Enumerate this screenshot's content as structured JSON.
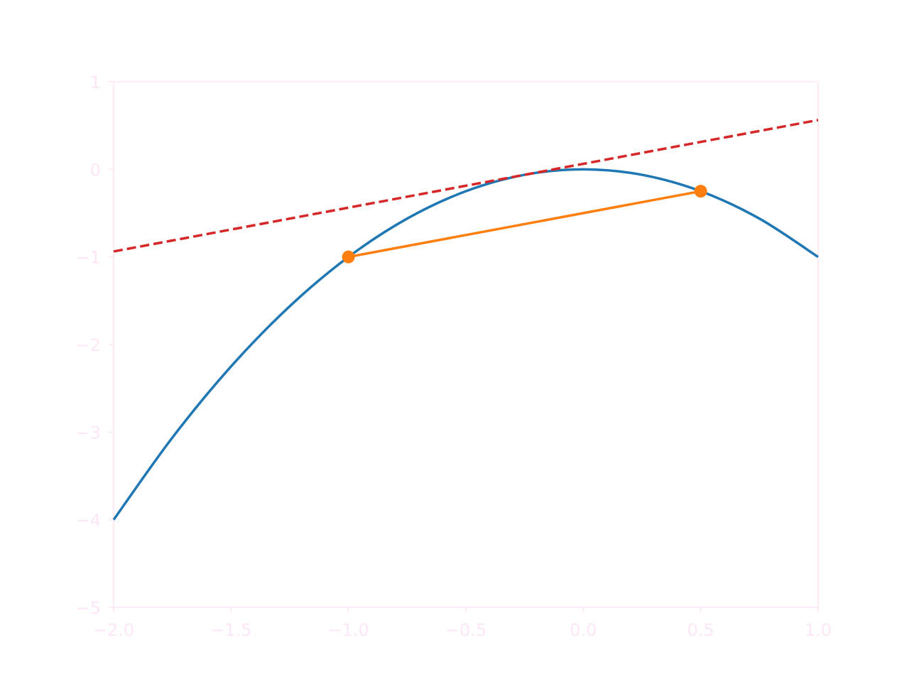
{
  "chart_data": {
    "type": "line",
    "title": "",
    "xlabel": "",
    "ylabel": "",
    "xlim": [
      -2.0,
      1.0
    ],
    "ylim": [
      -5,
      1
    ],
    "x_ticks": [
      {
        "value": -2.0,
        "label": "−2.0"
      },
      {
        "value": -1.5,
        "label": "−1.5"
      },
      {
        "value": -1.0,
        "label": "−1.0"
      },
      {
        "value": -0.5,
        "label": "−0.5"
      },
      {
        "value": 0.0,
        "label": "0.0"
      },
      {
        "value": 0.5,
        "label": "0.5"
      },
      {
        "value": 1.0,
        "label": "1.0"
      }
    ],
    "y_ticks": [
      {
        "value": 1,
        "label": "1"
      },
      {
        "value": 0,
        "label": "0"
      },
      {
        "value": -1,
        "label": "−1"
      },
      {
        "value": -2,
        "label": "−2"
      },
      {
        "value": -3,
        "label": "−3"
      },
      {
        "value": -4,
        "label": "−4"
      },
      {
        "value": -5,
        "label": "−5"
      }
    ],
    "grid": false,
    "legend": "none",
    "axis_color": "#fde6f7",
    "series": [
      {
        "style": "solid",
        "color": "#1f77b4",
        "x": [
          -2.0,
          -1.75,
          -1.5,
          -1.25,
          -1.0,
          -0.75,
          -0.5,
          -0.25,
          0.0,
          0.25,
          0.5,
          0.75,
          1.0
        ],
        "y": [
          -4.0,
          -3.0625,
          -2.25,
          -1.5625,
          -1.0,
          -0.5625,
          -0.25,
          -0.0625,
          0.0,
          -0.0625,
          -0.25,
          -0.5625,
          -1.0
        ]
      },
      {
        "style": "solid",
        "color": "#ff7f0e",
        "markers": true,
        "x": [
          -1.0,
          0.5
        ],
        "y": [
          -1.0,
          -0.25
        ]
      },
      {
        "style": "dashed",
        "color": "#d62728",
        "x": [
          -2.0,
          1.0
        ],
        "y": [
          -0.9375,
          0.5625
        ]
      }
    ]
  }
}
